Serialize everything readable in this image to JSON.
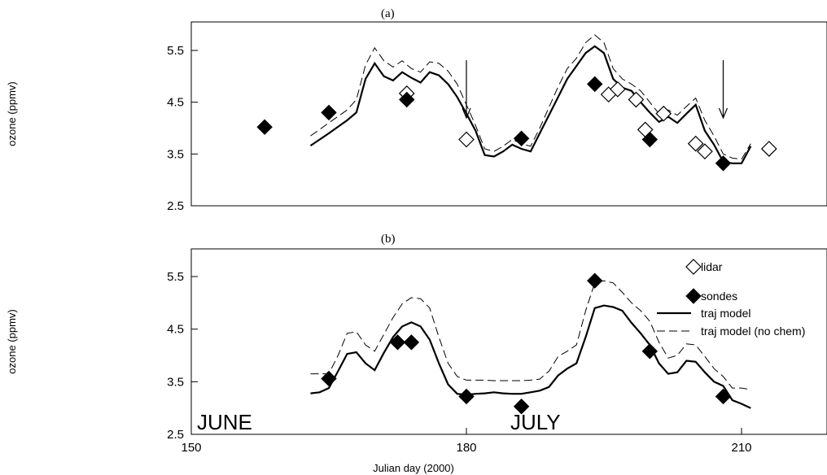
{
  "chart_data": [
    {
      "panel": "(a)",
      "type": "line",
      "title": "(a)",
      "ylabel": "ozone (ppmv)",
      "xlim": [
        150,
        230
      ],
      "ylim": [
        2.5,
        6.0
      ],
      "yticks": [
        "2.5",
        "3.5",
        "4.5",
        "5.5"
      ],
      "arrows_at_x": [
        180,
        208
      ],
      "series": [
        {
          "name": "traj model",
          "style": "solid",
          "x": [
            163,
            165,
            167,
            168,
            169,
            170,
            171,
            172,
            173,
            174,
            175,
            176,
            177,
            178,
            179,
            180,
            181,
            182,
            183,
            184,
            185,
            186,
            187,
            188,
            189,
            190,
            191,
            192,
            193,
            194,
            195,
            196,
            197,
            198,
            199,
            200,
            201,
            202,
            203,
            204,
            205,
            206,
            207,
            208,
            209,
            210,
            211
          ],
          "y": [
            3.66,
            3.9,
            4.15,
            4.3,
            4.95,
            5.25,
            5.0,
            4.92,
            5.08,
            4.97,
            4.88,
            5.08,
            5.02,
            4.85,
            4.6,
            4.28,
            3.95,
            3.48,
            3.45,
            3.55,
            3.68,
            3.6,
            3.55,
            3.9,
            4.25,
            4.6,
            4.95,
            5.2,
            5.45,
            5.58,
            5.45,
            4.95,
            4.78,
            4.72,
            4.5,
            4.3,
            4.12,
            4.22,
            4.1,
            4.28,
            4.45,
            3.95,
            3.68,
            3.35,
            3.32,
            3.32,
            3.65
          ]
        },
        {
          "name": "traj model (no chem)",
          "style": "dashed",
          "x": [
            163,
            165,
            167,
            168,
            169,
            170,
            171,
            172,
            173,
            174,
            175,
            176,
            177,
            178,
            179,
            180,
            181,
            182,
            183,
            184,
            185,
            186,
            187,
            188,
            189,
            190,
            191,
            192,
            193,
            194,
            195,
            196,
            197,
            198,
            199,
            200,
            201,
            202,
            203,
            204,
            205,
            206,
            207,
            208,
            209,
            210,
            211
          ],
          "y": [
            3.85,
            4.1,
            4.35,
            4.55,
            5.22,
            5.55,
            5.3,
            5.18,
            5.3,
            5.15,
            5.08,
            5.28,
            5.25,
            5.1,
            4.85,
            4.45,
            4.05,
            3.6,
            3.55,
            3.65,
            3.78,
            3.7,
            3.65,
            4.0,
            4.4,
            4.8,
            5.15,
            5.35,
            5.65,
            5.8,
            5.65,
            5.15,
            4.95,
            4.85,
            4.72,
            4.5,
            4.28,
            4.35,
            4.25,
            4.42,
            4.58,
            4.15,
            3.85,
            3.5,
            3.42,
            3.4,
            3.7
          ]
        },
        {
          "name": "lidar",
          "style": "open-diamond",
          "x": [
            173.5,
            180,
            195.5,
            196.5,
            198.5,
            199.5,
            201.5,
            205,
            206,
            213
          ],
          "y": [
            4.67,
            3.78,
            4.65,
            4.75,
            4.55,
            3.97,
            4.28,
            3.7,
            3.55,
            3.6
          ]
        },
        {
          "name": "sondes",
          "style": "filled-diamond",
          "x": [
            158,
            165,
            173.5,
            186,
            194,
            200,
            208
          ],
          "y": [
            4.02,
            4.3,
            4.55,
            3.8,
            4.85,
            3.78,
            3.32
          ]
        }
      ]
    },
    {
      "panel": "(b)",
      "type": "line",
      "title": "(b)",
      "xlabel": "Julian day (2000)",
      "ylabel": "ozone (ppmv)",
      "xlim": [
        150,
        230
      ],
      "ylim": [
        2.5,
        6.0
      ],
      "xticks": [
        "150",
        "180",
        "210"
      ],
      "yticks": [
        "2.5",
        "3.5",
        "4.5",
        "5.5"
      ],
      "annotations": [
        "JUNE",
        "JULY"
      ],
      "series": [
        {
          "name": "traj model",
          "style": "solid",
          "x": [
            163,
            164,
            165,
            166,
            167,
            168,
            169,
            170,
            171,
            172,
            173,
            174,
            175,
            176,
            177,
            178,
            179,
            180,
            181,
            182,
            183,
            184,
            185,
            186,
            187,
            188,
            189,
            190,
            191,
            192,
            193,
            194,
            195,
            196,
            197,
            198,
            199,
            200,
            201,
            202,
            203,
            204,
            205,
            206,
            207,
            208,
            209,
            210,
            211
          ],
          "y": [
            3.28,
            3.3,
            3.38,
            3.7,
            4.03,
            4.06,
            3.85,
            3.72,
            4.05,
            4.35,
            4.55,
            4.63,
            4.55,
            4.3,
            3.85,
            3.45,
            3.27,
            3.25,
            3.27,
            3.28,
            3.3,
            3.28,
            3.27,
            3.27,
            3.3,
            3.33,
            3.4,
            3.62,
            3.75,
            3.85,
            4.35,
            4.9,
            4.95,
            4.92,
            4.85,
            4.62,
            4.42,
            4.2,
            3.85,
            3.65,
            3.68,
            3.9,
            3.88,
            3.68,
            3.5,
            3.42,
            3.15,
            3.08,
            3.0
          ]
        },
        {
          "name": "traj model (no chem)",
          "style": "dashed",
          "x": [
            163,
            164,
            165,
            166,
            167,
            168,
            169,
            170,
            171,
            172,
            173,
            174,
            175,
            176,
            177,
            178,
            179,
            180,
            181,
            182,
            183,
            184,
            185,
            186,
            187,
            188,
            189,
            190,
            191,
            192,
            193,
            194,
            195,
            196,
            197,
            198,
            199,
            200,
            201,
            202,
            203,
            204,
            205,
            206,
            207,
            208,
            209,
            210,
            211
          ],
          "y": [
            3.65,
            3.65,
            3.65,
            4.0,
            4.42,
            4.45,
            4.2,
            4.08,
            4.4,
            4.72,
            4.98,
            5.1,
            5.08,
            4.9,
            4.35,
            3.85,
            3.6,
            3.53,
            3.53,
            3.53,
            3.52,
            3.52,
            3.52,
            3.52,
            3.53,
            3.55,
            3.7,
            3.98,
            4.08,
            4.2,
            4.85,
            5.38,
            5.42,
            5.38,
            5.2,
            5.0,
            4.85,
            4.65,
            4.25,
            3.95,
            4.0,
            4.22,
            4.2,
            3.98,
            3.75,
            3.6,
            3.38,
            3.38,
            3.35
          ]
        },
        {
          "name": "sondes",
          "style": "filled-diamond",
          "x": [
            165,
            172.5,
            174,
            180,
            186,
            194,
            200,
            208
          ],
          "y": [
            3.56,
            4.25,
            4.25,
            3.22,
            3.03,
            5.42,
            4.08,
            3.22
          ]
        }
      ],
      "legend": {
        "placement": "top-right",
        "entries": [
          "lidar",
          "sondes",
          "traj model",
          "traj model (no chem)"
        ]
      }
    }
  ]
}
